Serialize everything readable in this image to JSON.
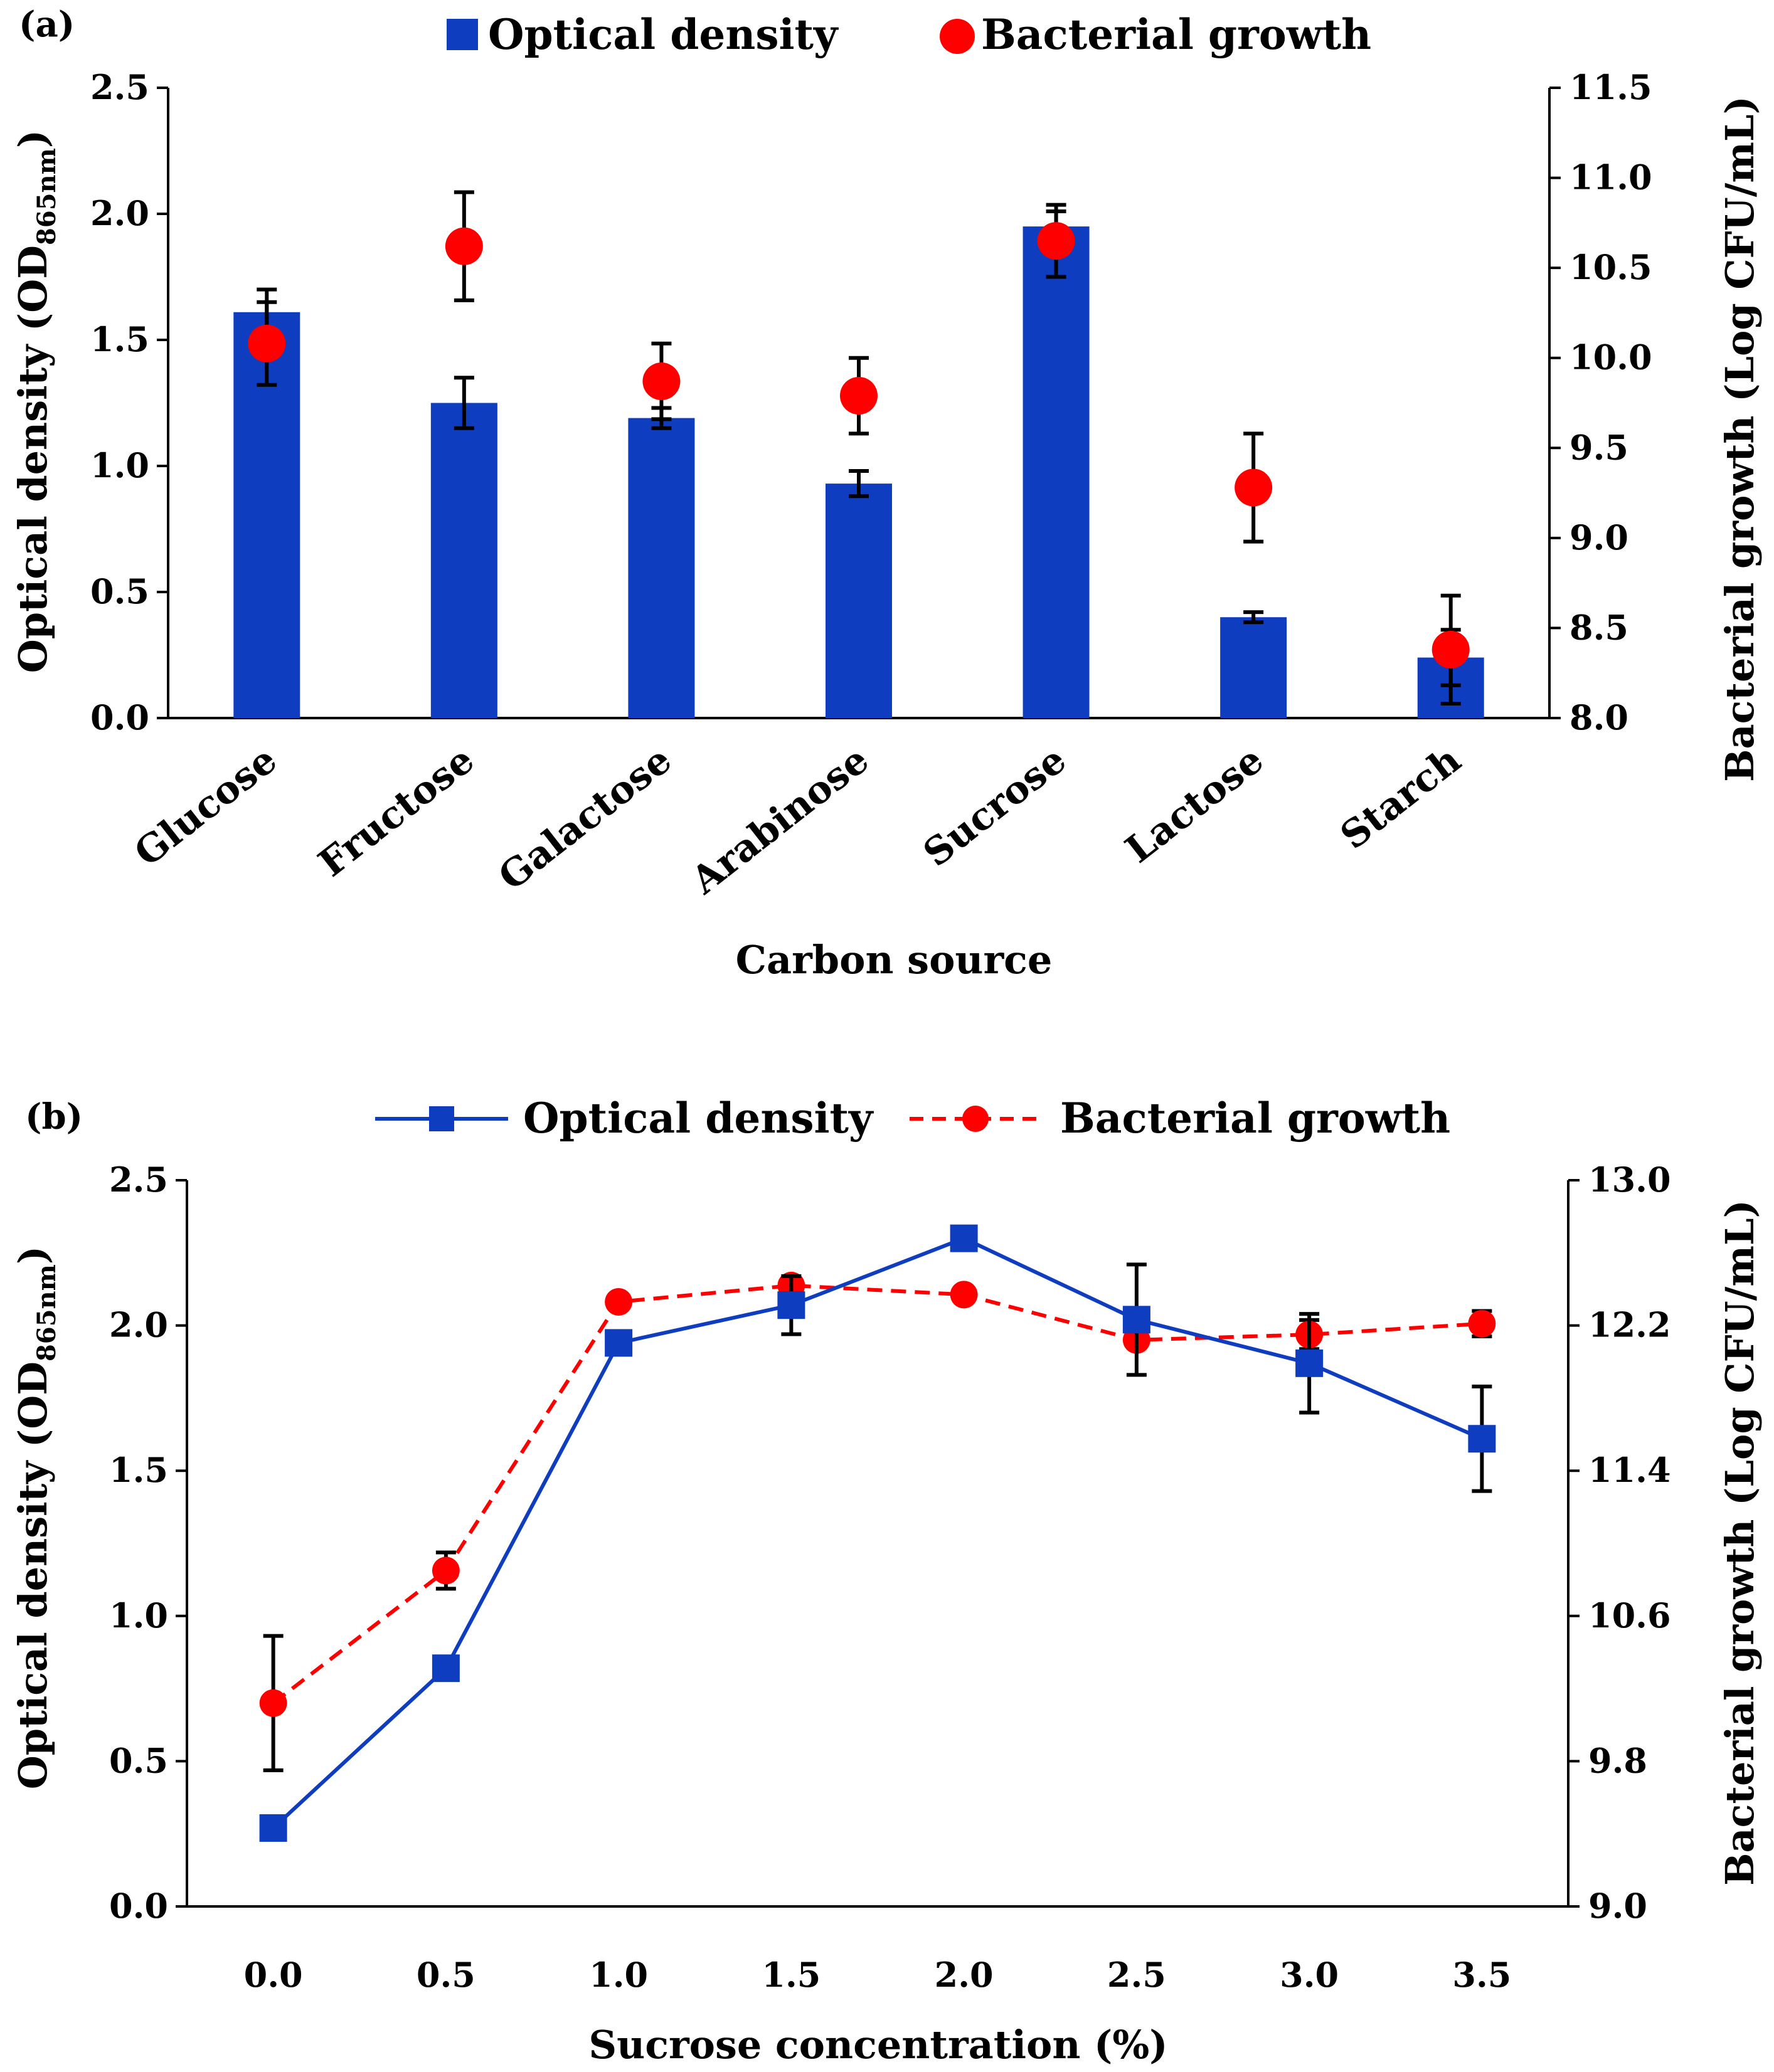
{
  "chart_data": [
    {
      "panel_label": "(a)",
      "type": "bar",
      "xlabel": "Carbon source",
      "categories": [
        "Glucose",
        "Fructose",
        "Galactose",
        "Arabinose",
        "Sucrose",
        "Lactose",
        "Starch"
      ],
      "legend": {
        "bar": "Optical density",
        "dot": "Bacterial growth",
        "placement": "top-center"
      },
      "y_left": {
        "label_main": "Optical density (OD",
        "label_sub": "865nm",
        "label_end": ")",
        "ylim": [
          0,
          2.5
        ],
        "ticks": [
          "0.0",
          "0.5",
          "1.0",
          "1.5",
          "2.0",
          "2.5"
        ]
      },
      "y_right": {
        "label": "Bacterial growth (Log CFU/mL)",
        "ylim": [
          8.0,
          11.5
        ],
        "ticks": [
          "8.0",
          "8.5",
          "9.0",
          "9.5",
          "10.0",
          "10.5",
          "11.0",
          "11.5"
        ]
      },
      "series": [
        {
          "name": "Optical density",
          "axis": "left",
          "style": "bar",
          "color": "#0f3dbf",
          "values": [
            1.61,
            1.25,
            1.19,
            0.93,
            1.95,
            0.4,
            0.24
          ],
          "errors": [
            0.09,
            0.1,
            0.04,
            0.05,
            0.06,
            0.02,
            0.11
          ]
        },
        {
          "name": "Bacterial growth",
          "axis": "right",
          "style": "dot",
          "color": "#ff0000",
          "values": [
            10.08,
            10.62,
            9.87,
            9.79,
            10.65,
            9.28,
            8.38
          ],
          "errors": [
            0.23,
            0.3,
            0.21,
            0.21,
            0.2,
            0.3,
            0.3
          ]
        }
      ]
    },
    {
      "panel_label": "(b)",
      "type": "line",
      "xlabel": "Sucrose concentration (%)",
      "x": [
        "0.0",
        "0.5",
        "1.0",
        "1.5",
        "2.0",
        "2.5",
        "3.0",
        "3.5"
      ],
      "legend": {
        "line1": "Optical density",
        "line2": "Bacterial growth",
        "placement": "top-center"
      },
      "y_left": {
        "label_main": "Optical density (OD",
        "label_sub": "865nm",
        "label_end": ")",
        "ylim": [
          0,
          2.5
        ],
        "ticks": [
          "0.0",
          "0.5",
          "1.0",
          "1.5",
          "2.0",
          "2.5"
        ]
      },
      "y_right": {
        "label": "Bacterial growth (Log CFU/mL)",
        "ylim": [
          9.0,
          13.0
        ],
        "ticks": [
          "9.0",
          "9.8",
          "10.6",
          "11.4",
          "12.2",
          "13.0"
        ]
      },
      "series": [
        {
          "name": "Optical density",
          "axis": "left",
          "style": "solid-square",
          "color": "#0f3dbf",
          "values": [
            0.27,
            0.82,
            1.94,
            2.07,
            2.3,
            2.02,
            1.87,
            1.61
          ],
          "errors": [
            0.0,
            0.0,
            0.0,
            0.1,
            0.0,
            0.19,
            0.17,
            0.18
          ]
        },
        {
          "name": "Bacterial growth",
          "axis": "right",
          "style": "dashed-circle",
          "color": "#ff0000",
          "values": [
            10.12,
            10.85,
            12.33,
            12.42,
            12.37,
            12.12,
            12.15,
            12.21
          ],
          "errors": [
            0.37,
            0.1,
            0.0,
            0.0,
            0.0,
            0.0,
            0.08,
            0.07
          ]
        }
      ]
    }
  ]
}
